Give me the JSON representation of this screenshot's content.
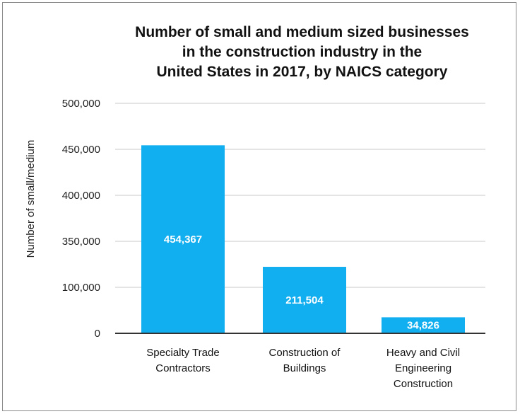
{
  "chart_data": {
    "type": "bar",
    "title_lines": [
      "Number of small and medium sized businesses",
      "in the construction industry in the",
      "United States in 2017, by NAICS category"
    ],
    "ylabel": "Number of small/medium",
    "xlabel": "",
    "y_ticks": [
      "0",
      "100,000",
      "350,000",
      "400,000",
      "450,000",
      "500,000"
    ],
    "categories": [
      [
        "Specialty Trade",
        "Contractors"
      ],
      [
        "Construction of",
        "Buildings"
      ],
      [
        "Heavy and Civil",
        "Engineering",
        "Construction"
      ]
    ],
    "values": [
      454367,
      211504,
      34826
    ],
    "data_labels": [
      "454,367",
      "211,504",
      "34,826"
    ],
    "bar_color": "#12aff0",
    "grid": true,
    "legend": "none"
  }
}
